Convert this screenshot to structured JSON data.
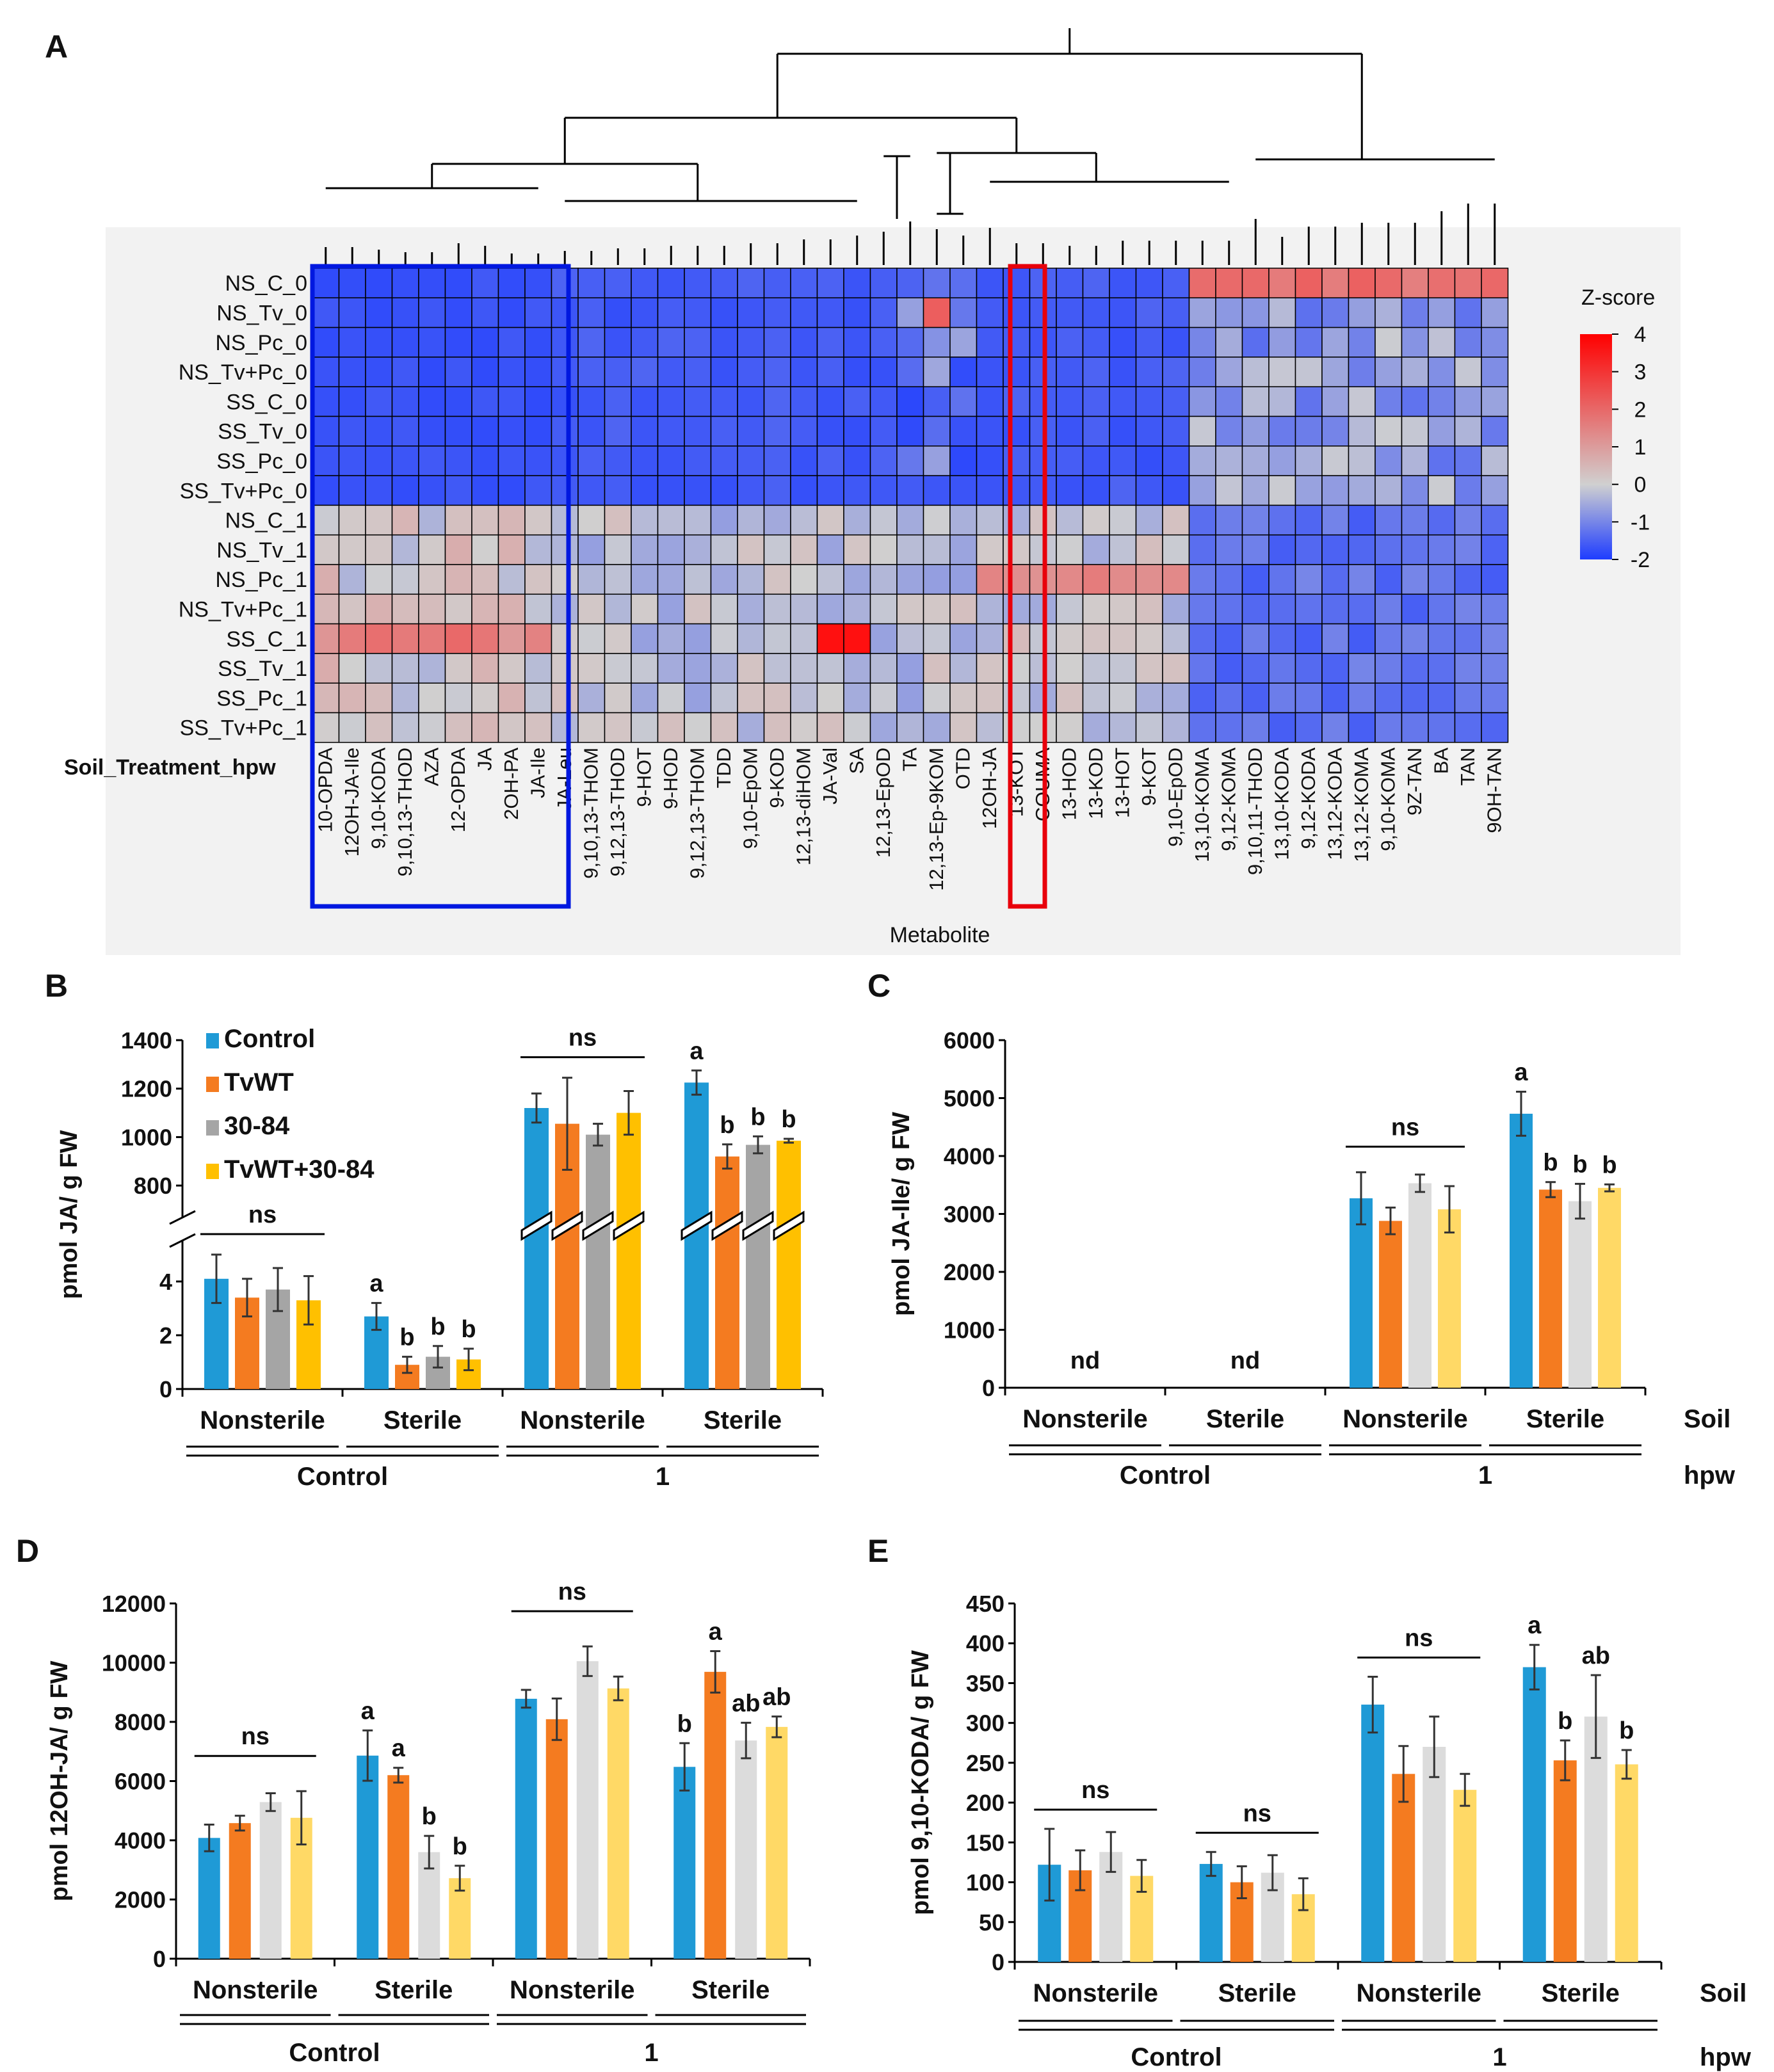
{
  "colors": {
    "Control": "#1f9ad6",
    "TvWT": "#f47b20",
    "30-84": "#a5a5a5",
    "TvWT+30-84": "#ffc000",
    "30-84_light": "#dcdcdc",
    "TvWT+30-84_light": "#ffd966",
    "heat_low": "#1e3cff",
    "heat_mid": "#d0d0d0",
    "heat_high": "#ff1010",
    "box_blue": "#0018e0",
    "box_red": "#e8000b"
  },
  "panels": {
    "A": "A",
    "B": "B",
    "C": "C",
    "D": "D",
    "E": "E"
  },
  "heatmap": {
    "rows": [
      "NS_C_0",
      "NS_Tv_0",
      "NS_Pc_0",
      "NS_Tv+Pc_0",
      "SS_C_0",
      "SS_Tv_0",
      "SS_Pc_0",
      "SS_Tv+Pc_0",
      "NS_C_1",
      "NS_Tv_1",
      "NS_Pc_1",
      "NS_Tv+Pc_1",
      "SS_C_1",
      "SS_Tv_1",
      "SS_Pc_1",
      "SS_Tv+Pc_1"
    ],
    "columns": [
      "10-OPDA",
      "12OH-JA-Ile",
      "9,10-KODA",
      "9,10,13-THOD",
      "AZA",
      "12-OPDA",
      "JA",
      "2OH-PA",
      "JA-Ile",
      "JA-Leu",
      "9,10,13-THOM",
      "9,12,13-THOD",
      "9-HOT",
      "9-HOD",
      "9,12,13-THOM",
      "TDD",
      "9,10-EpOM",
      "9-KOD",
      "12,13-diHOM",
      "JA-Val",
      "SA",
      "12,13-EpOD",
      "TA",
      "12,13-Ep-9KOM",
      "OTD",
      "12OH-JA",
      "13-KOT",
      "COUMA",
      "13-HOD",
      "13-KOD",
      "13-HOT",
      "9-KOT",
      "9,10-EpOD",
      "13,10-KOMA",
      "9,12-KOMA",
      "9,10,11-THOD",
      "13,10-KODA",
      "9,12-KODA",
      "13,12-KODA",
      "13,12-KOMA",
      "9,10-KOMA",
      "9Z-TAN",
      "BA",
      "TAN",
      "9OH-TAN"
    ],
    "row_axis_label": "Soil_Treatment_hpw",
    "col_axis_label": "Metabolite",
    "colorbar_title": "Z-score",
    "colorbar_ticks": [
      "4",
      "3",
      "2",
      "1",
      "0",
      "-1",
      "-2"
    ],
    "colorbar_range": [
      -2,
      4
    ]
  },
  "chart_data": [
    {
      "panel": "B",
      "type": "bar",
      "ylabel": "pmol JA/ g FW",
      "broken_axis": true,
      "lower_range": [
        0,
        5
      ],
      "lower_ticks": [
        0,
        2,
        4
      ],
      "upper_range": [
        700,
        1400
      ],
      "upper_ticks": [
        800,
        1000,
        1200,
        1400
      ],
      "series_names": [
        "Control",
        "TvWT",
        "30-84",
        "TvWT+30-84"
      ],
      "groups": [
        {
          "soil": "Nonsterile",
          "hpw": "Control",
          "values": [
            4.1,
            3.4,
            3.7,
            3.3
          ],
          "errors": [
            0.9,
            0.7,
            0.8,
            0.9
          ],
          "letters": [
            "",
            "",
            "",
            ""
          ],
          "ns": true
        },
        {
          "soil": "Sterile",
          "hpw": "Control",
          "values": [
            2.7,
            0.9,
            1.2,
            1.1
          ],
          "errors": [
            0.5,
            0.3,
            0.4,
            0.4
          ],
          "letters": [
            "a",
            "b",
            "b",
            "b"
          ],
          "ns": false
        },
        {
          "soil": "Nonsterile",
          "hpw": "1",
          "values": [
            1120,
            1055,
            1010,
            1100
          ],
          "errors": [
            60,
            190,
            45,
            90
          ],
          "letters": [
            "",
            "",
            "",
            ""
          ],
          "ns": true
        },
        {
          "soil": "Sterile",
          "hpw": "1",
          "values": [
            1225,
            920,
            968,
            985
          ],
          "errors": [
            50,
            50,
            35,
            8
          ],
          "letters": [
            "a",
            "b",
            "b",
            "b"
          ],
          "ns": false
        }
      ],
      "ns_label": "ns",
      "hpw_labels": [
        "Control",
        "1"
      ]
    },
    {
      "panel": "C",
      "type": "bar",
      "ylabel": "pmol JA-Ile/ g FW",
      "ylim": [
        0,
        6000
      ],
      "ticks": [
        0,
        1000,
        2000,
        3000,
        4000,
        5000,
        6000
      ],
      "series_names": [
        "Control",
        "TvWT",
        "30-84",
        "TvWT+30-84"
      ],
      "groups": [
        {
          "soil": "Nonsterile",
          "hpw": "Control",
          "values": [
            0,
            0,
            0,
            0
          ],
          "errors": [
            0,
            0,
            0,
            0
          ],
          "letters": [
            "",
            "",
            "",
            ""
          ],
          "nd": "nd"
        },
        {
          "soil": "Sterile",
          "hpw": "Control",
          "values": [
            0,
            0,
            0,
            0
          ],
          "errors": [
            0,
            0,
            0,
            0
          ],
          "letters": [
            "",
            "",
            "",
            ""
          ],
          "nd": "nd"
        },
        {
          "soil": "Nonsterile",
          "hpw": "1",
          "values": [
            3270,
            2880,
            3530,
            3080
          ],
          "errors": [
            450,
            230,
            150,
            400
          ],
          "letters": [
            "",
            "",
            "",
            ""
          ],
          "ns": true
        },
        {
          "soil": "Sterile",
          "hpw": "1",
          "values": [
            4730,
            3420,
            3220,
            3450
          ],
          "errors": [
            380,
            130,
            300,
            60
          ],
          "letters": [
            "a",
            "b",
            "b",
            "b"
          ],
          "ns": false
        }
      ],
      "ns_label": "ns",
      "soil_title": "Soil",
      "hpw_title": "hpw",
      "hpw_labels": [
        "Control",
        "1"
      ]
    },
    {
      "panel": "D",
      "type": "bar",
      "ylabel": "pmol 12OH-JA/ g FW",
      "ylim": [
        0,
        12000
      ],
      "ticks": [
        0,
        2000,
        4000,
        6000,
        8000,
        10000,
        12000
      ],
      "series_names": [
        "Control",
        "TvWT",
        "30-84",
        "TvWT+30-84"
      ],
      "groups": [
        {
          "soil": "Nonsterile",
          "hpw": "Control",
          "values": [
            4080,
            4580,
            5290,
            4760
          ],
          "errors": [
            450,
            250,
            300,
            900
          ],
          "letters": [
            "",
            "",
            "",
            ""
          ],
          "ns": true
        },
        {
          "soil": "Sterile",
          "hpw": "Control",
          "values": [
            6860,
            6200,
            3600,
            2720
          ],
          "errors": [
            850,
            250,
            550,
            420
          ],
          "letters": [
            "a",
            "a",
            "b",
            "b"
          ],
          "ns": false
        },
        {
          "soil": "Nonsterile",
          "hpw": "1",
          "values": [
            8780,
            8090,
            10050,
            9130
          ],
          "errors": [
            300,
            700,
            500,
            400
          ],
          "letters": [
            "",
            "",
            "",
            ""
          ],
          "ns": true
        },
        {
          "soil": "Sterile",
          "hpw": "1",
          "values": [
            6480,
            9690,
            7370,
            7830
          ],
          "errors": [
            800,
            700,
            600,
            350
          ],
          "letters": [
            "b",
            "a",
            "ab",
            "ab"
          ],
          "ns": false
        }
      ],
      "ns_label": "ns",
      "hpw_labels": [
        "Control",
        "1"
      ]
    },
    {
      "panel": "E",
      "type": "bar",
      "ylabel": "pmol 9,10-KODA/ g FW",
      "ylim": [
        0,
        450
      ],
      "ticks": [
        0,
        50,
        100,
        150,
        200,
        250,
        300,
        350,
        400,
        450
      ],
      "series_names": [
        "Control",
        "TvWT",
        "30-84",
        "TvWT+30-84"
      ],
      "groups": [
        {
          "soil": "Nonsterile",
          "hpw": "Control",
          "values": [
            122,
            115,
            138,
            108
          ],
          "errors": [
            45,
            25,
            25,
            20
          ],
          "letters": [
            "",
            "",
            "",
            ""
          ],
          "ns": true
        },
        {
          "soil": "Sterile",
          "hpw": "Control",
          "values": [
            123,
            100,
            112,
            85
          ],
          "errors": [
            15,
            20,
            22,
            20
          ],
          "letters": [
            "",
            "",
            "",
            ""
          ],
          "ns": true
        },
        {
          "soil": "Nonsterile",
          "hpw": "1",
          "values": [
            323,
            236,
            270,
            216
          ],
          "errors": [
            35,
            35,
            38,
            20
          ],
          "letters": [
            "",
            "",
            "",
            ""
          ],
          "ns": true
        },
        {
          "soil": "Sterile",
          "hpw": "1",
          "values": [
            370,
            253,
            308,
            248
          ],
          "errors": [
            28,
            25,
            52,
            18
          ],
          "letters": [
            "a",
            "b",
            "ab",
            "b"
          ],
          "ns": false
        }
      ],
      "ns_label": "ns",
      "soil_title": "Soil",
      "hpw_title": "hpw",
      "hpw_labels": [
        "Control",
        "1"
      ]
    }
  ]
}
